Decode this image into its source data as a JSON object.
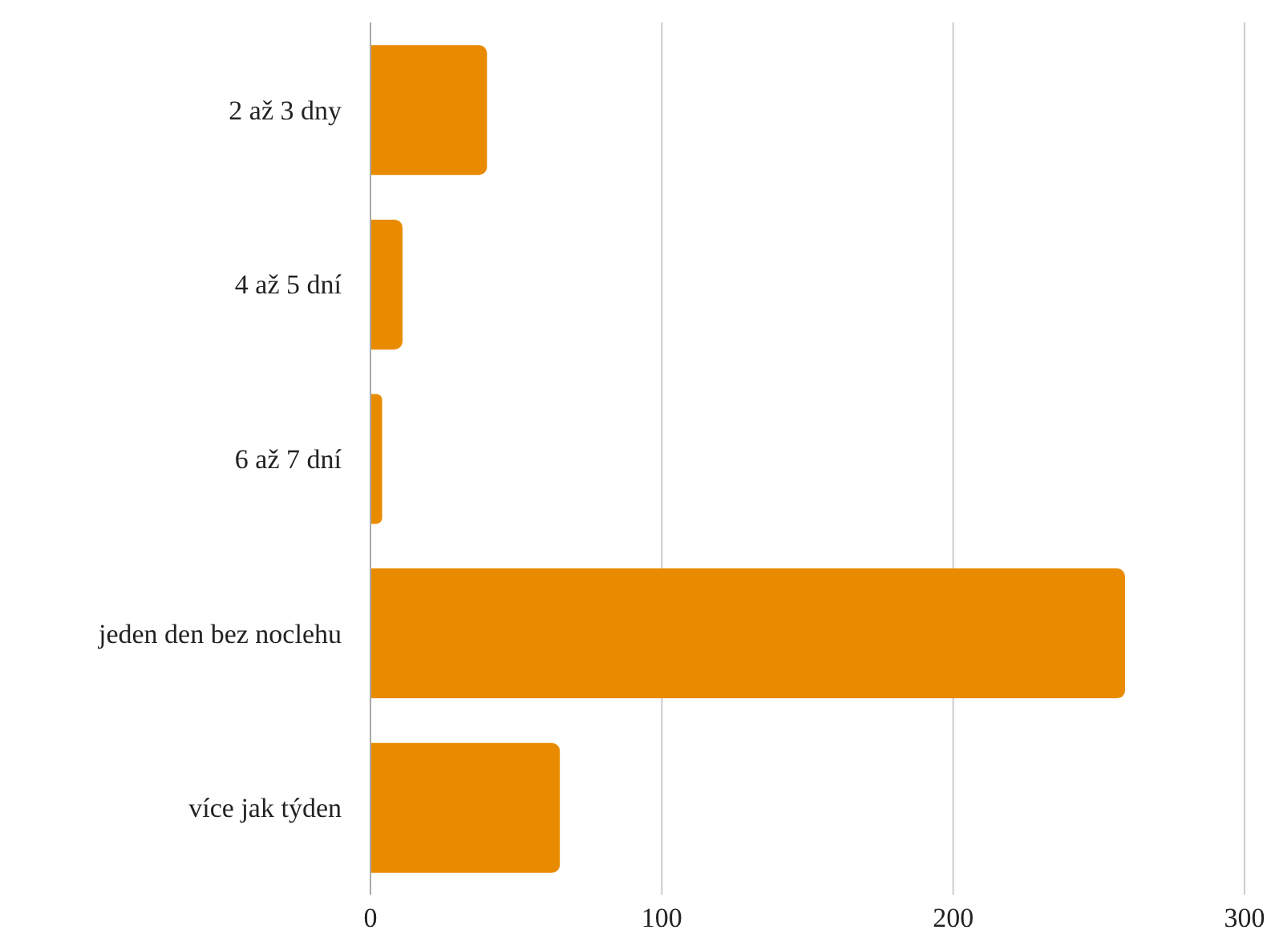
{
  "chart_data": {
    "type": "bar",
    "orientation": "horizontal",
    "categories": [
      "2 až 3 dny",
      "4 až 5 dní",
      "6 až 7 dní",
      "jeden den bez noclehu",
      "více jak týden"
    ],
    "values": [
      40,
      11,
      4,
      259,
      65
    ],
    "color": "#e98b00",
    "xlim": [
      0,
      300
    ],
    "xticks": [
      0,
      100,
      200,
      300
    ],
    "grid": "x"
  }
}
